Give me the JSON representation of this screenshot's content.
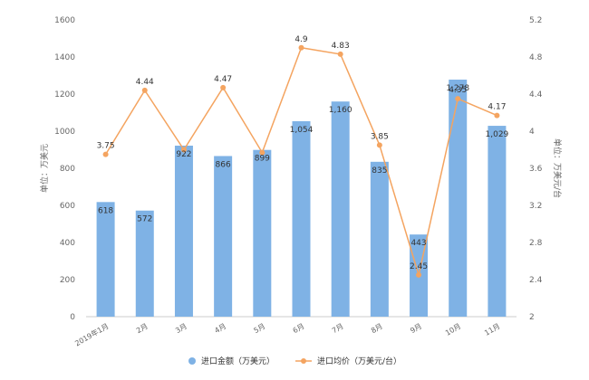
{
  "chart_data": {
    "type": "bar",
    "categories": [
      "2019年1月",
      "2月",
      "3月",
      "4月",
      "5月",
      "6月",
      "7月",
      "8月",
      "9月",
      "10月",
      "11月"
    ],
    "series": [
      {
        "name": "进口金额（万美元）",
        "type": "bar",
        "axis": "left",
        "color": "#7FB2E5",
        "values": [
          618,
          572,
          922,
          866,
          899,
          1054,
          1160,
          835,
          443,
          1278,
          1029
        ],
        "labels": [
          "618",
          "572",
          "922",
          "866",
          "899",
          "1,054",
          "1,160",
          "835",
          "443",
          "1,278",
          "1,029"
        ]
      },
      {
        "name": "进口均价（万美元/台）",
        "type": "line",
        "axis": "right",
        "color": "#F4A460",
        "values": [
          3.75,
          4.44,
          3.8,
          4.47,
          3.77,
          4.9,
          4.83,
          3.85,
          2.45,
          4.35,
          4.17
        ],
        "labels": [
          "3.75",
          "4.44",
          "",
          "4.47",
          "",
          "4.9",
          "4.83",
          "3.85",
          "2.45",
          "4.35",
          "4.17"
        ]
      }
    ],
    "y_left": {
      "label": "单位：万美元",
      "range": [
        0,
        1600
      ],
      "ticks": [
        "0",
        "200",
        "400",
        "600",
        "800",
        "1000",
        "1200",
        "1400",
        "1600"
      ]
    },
    "y_right": {
      "label": "单位：万美元/台",
      "range": [
        2,
        5.2
      ],
      "ticks": [
        "2",
        "2.4",
        "2.8",
        "3.2",
        "3.6",
        "4",
        "4.4",
        "4.8",
        "5.2"
      ]
    },
    "grid": false,
    "legend_position": "bottom-center"
  }
}
